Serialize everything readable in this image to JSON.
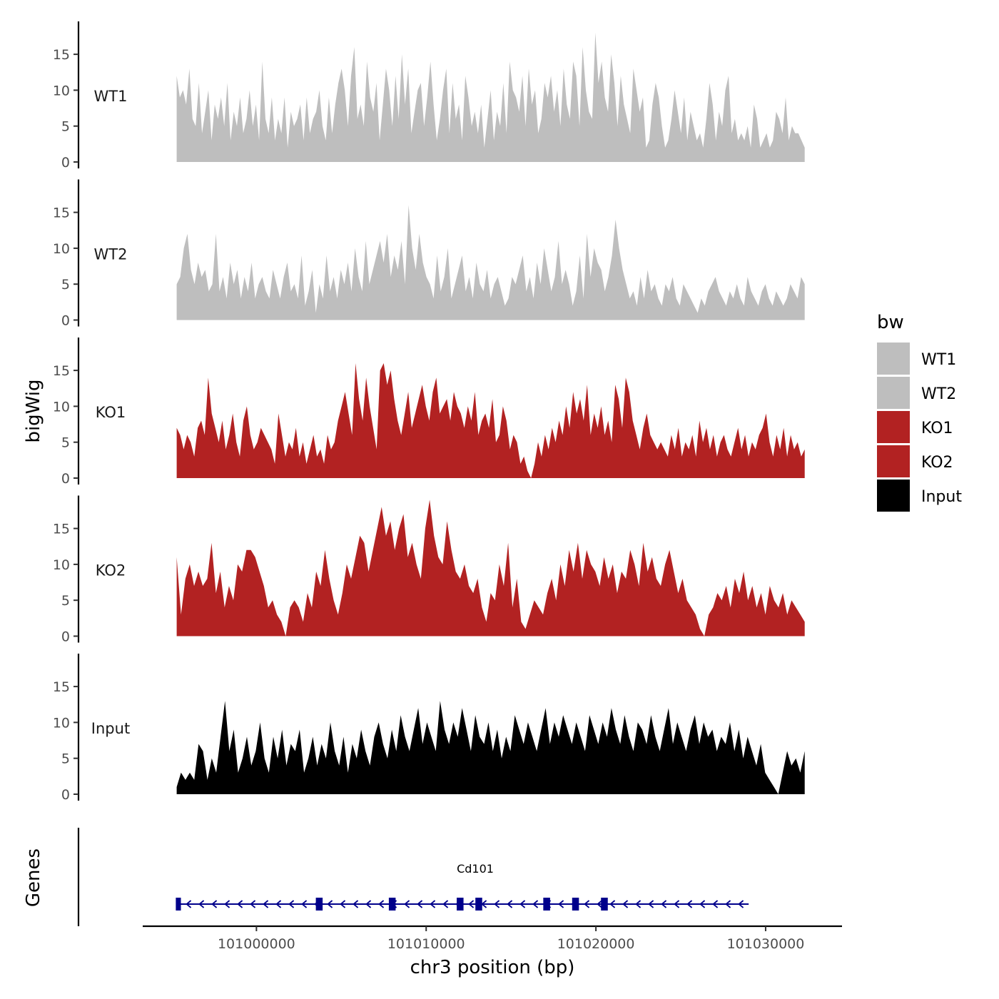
{
  "chart_data": {
    "type": "area",
    "title": "",
    "ylabel": "bigWig",
    "xlabel": "chr3 position (bp)",
    "genes_label": "Genes",
    "ylim": [
      0,
      19
    ],
    "yticks": [
      0,
      5,
      10,
      15
    ],
    "xlim": [
      100993300,
      101034500
    ],
    "xticks": [
      101000000,
      101010000,
      101020000,
      101030000
    ],
    "x_start": 100995300,
    "x_end": 101032300,
    "legend": {
      "title": "bw",
      "position": "right",
      "entries": [
        {
          "label": "WT1",
          "color": "#bebebe"
        },
        {
          "label": "WT2",
          "color": "#bebebe"
        },
        {
          "label": "KO1",
          "color": "#b22222"
        },
        {
          "label": "KO2",
          "color": "#b22222"
        },
        {
          "label": "Input",
          "color": "#000000"
        }
      ]
    },
    "series": [
      {
        "name": "WT1",
        "color": "#bebebe",
        "values": [
          12,
          9,
          10,
          8,
          13,
          6,
          5,
          11,
          4,
          7,
          10,
          3,
          8,
          6,
          9,
          5,
          11,
          3,
          7,
          5,
          9,
          4,
          6,
          10,
          5,
          8,
          3,
          14,
          6,
          4,
          9,
          3,
          6,
          4,
          9,
          2,
          7,
          5,
          6,
          8,
          3,
          9,
          4,
          6,
          7,
          10,
          5,
          3,
          9,
          4,
          8,
          11,
          13,
          10,
          5,
          12,
          16,
          6,
          8,
          5,
          14,
          9,
          7,
          11,
          3,
          8,
          13,
          10,
          5,
          12,
          6,
          15,
          8,
          13,
          4,
          7,
          10,
          11,
          5,
          9,
          14,
          8,
          3,
          6,
          10,
          13,
          4,
          11,
          6,
          8,
          3,
          12,
          9,
          5,
          7,
          4,
          8,
          2,
          6,
          10,
          3,
          7,
          5,
          11,
          4,
          14,
          10,
          9,
          7,
          12,
          5,
          13,
          8,
          10,
          4,
          6,
          11,
          9,
          12,
          7,
          10,
          5,
          13,
          8,
          6,
          14,
          12,
          5,
          16,
          10,
          7,
          6,
          18,
          11,
          14,
          9,
          7,
          15,
          11,
          5,
          12,
          8,
          6,
          4,
          13,
          10,
          7,
          9,
          2,
          3,
          8,
          11,
          9,
          5,
          2,
          3,
          6,
          10,
          7,
          4,
          9,
          3,
          7,
          5,
          3,
          4,
          2,
          6,
          11,
          8,
          3,
          7,
          5,
          10,
          12,
          4,
          6,
          3,
          4,
          3,
          5,
          2,
          8,
          6,
          2,
          3,
          4,
          2,
          3,
          7,
          6,
          4,
          9,
          3,
          5,
          4,
          4,
          3,
          2
        ]
      },
      {
        "name": "WT2",
        "color": "#bebebe",
        "values": [
          5,
          6,
          10,
          12,
          7,
          5,
          8,
          6,
          7,
          4,
          5,
          12,
          4,
          6,
          3,
          8,
          5,
          7,
          3,
          6,
          4,
          8,
          3,
          5,
          6,
          4,
          3,
          7,
          5,
          3,
          6,
          8,
          4,
          5,
          3,
          9,
          2,
          4,
          7,
          1,
          5,
          3,
          9,
          4,
          6,
          3,
          7,
          5,
          8,
          4,
          10,
          6,
          4,
          11,
          5,
          7,
          9,
          11,
          8,
          12,
          6,
          9,
          7,
          11,
          5,
          16,
          10,
          7,
          12,
          8,
          6,
          5,
          3,
          9,
          4,
          6,
          10,
          3,
          5,
          7,
          9,
          4,
          6,
          3,
          8,
          5,
          4,
          7,
          3,
          5,
          6,
          4,
          2,
          3,
          6,
          5,
          7,
          9,
          4,
          6,
          3,
          8,
          5,
          10,
          7,
          4,
          6,
          11,
          5,
          7,
          5,
          2,
          4,
          9,
          3,
          12,
          6,
          10,
          8,
          7,
          4,
          6,
          9,
          14,
          10,
          7,
          5,
          3,
          4,
          2,
          6,
          3,
          7,
          4,
          5,
          3,
          2,
          5,
          4,
          6,
          3,
          2,
          5,
          4,
          3,
          2,
          1,
          3,
          2,
          4,
          5,
          6,
          4,
          3,
          2,
          4,
          3,
          5,
          3,
          2,
          6,
          4,
          3,
          2,
          4,
          5,
          3,
          2,
          4,
          3,
          2,
          3,
          5,
          4,
          3,
          6,
          5
        ]
      },
      {
        "name": "KO1",
        "color": "#b22222",
        "values": [
          7,
          6,
          4,
          6,
          5,
          3,
          7,
          8,
          6,
          14,
          9,
          7,
          5,
          8,
          4,
          6,
          9,
          5,
          3,
          8,
          10,
          6,
          4,
          5,
          7,
          6,
          5,
          4,
          2,
          9,
          6,
          3,
          5,
          4,
          7,
          3,
          5,
          2,
          4,
          6,
          3,
          4,
          2,
          6,
          4,
          5,
          8,
          10,
          12,
          9,
          6,
          16,
          11,
          8,
          14,
          10,
          7,
          4,
          15,
          16,
          13,
          15,
          11,
          8,
          6,
          9,
          12,
          7,
          9,
          11,
          13,
          10,
          8,
          12,
          14,
          9,
          10,
          11,
          8,
          12,
          10,
          9,
          7,
          10,
          8,
          12,
          6,
          8,
          9,
          7,
          11,
          5,
          6,
          10,
          8,
          4,
          6,
          5,
          2,
          3,
          1,
          0,
          2,
          5,
          3,
          6,
          4,
          7,
          5,
          8,
          6,
          10,
          7,
          12,
          9,
          11,
          8,
          13,
          6,
          9,
          7,
          10,
          6,
          8,
          5,
          13,
          11,
          7,
          14,
          12,
          8,
          6,
          4,
          7,
          9,
          6,
          5,
          4,
          5,
          4,
          3,
          6,
          4,
          7,
          3,
          5,
          4,
          6,
          3,
          8,
          5,
          7,
          4,
          6,
          3,
          5,
          6,
          4,
          3,
          5,
          7,
          4,
          6,
          3,
          5,
          4,
          6,
          7,
          9,
          5,
          3,
          6,
          4,
          7,
          3,
          6,
          4,
          5,
          3,
          4
        ]
      },
      {
        "name": "KO2",
        "color": "#b22222",
        "values": [
          11,
          3,
          8,
          10,
          7,
          9,
          7,
          8,
          13,
          6,
          9,
          4,
          7,
          5,
          10,
          9,
          12,
          12,
          11,
          9,
          7,
          4,
          5,
          3,
          2,
          0,
          4,
          5,
          4,
          2,
          6,
          4,
          9,
          7,
          12,
          8,
          5,
          3,
          6,
          10,
          8,
          11,
          14,
          13,
          9,
          12,
          15,
          18,
          14,
          16,
          12,
          15,
          17,
          11,
          13,
          10,
          8,
          15,
          19,
          14,
          11,
          10,
          16,
          12,
          9,
          8,
          10,
          7,
          6,
          8,
          4,
          2,
          6,
          5,
          10,
          7,
          13,
          4,
          8,
          2,
          1,
          3,
          5,
          4,
          3,
          6,
          8,
          5,
          10,
          7,
          12,
          9,
          13,
          8,
          12,
          10,
          9,
          7,
          11,
          8,
          10,
          6,
          9,
          8,
          12,
          10,
          7,
          13,
          9,
          11,
          8,
          7,
          10,
          12,
          9,
          6,
          8,
          5,
          4,
          3,
          1,
          0,
          3,
          4,
          6,
          5,
          7,
          4,
          8,
          6,
          9,
          5,
          7,
          4,
          6,
          3,
          7,
          5,
          4,
          6,
          3,
          5,
          4,
          3,
          2
        ]
      },
      {
        "name": "Input",
        "color": "#000000",
        "values": [
          1,
          3,
          2,
          3,
          2,
          7,
          6,
          2,
          5,
          3,
          8,
          13,
          6,
          9,
          3,
          5,
          8,
          4,
          6,
          10,
          5,
          3,
          8,
          5,
          9,
          4,
          7,
          6,
          9,
          3,
          5,
          8,
          4,
          7,
          5,
          10,
          6,
          4,
          8,
          3,
          7,
          5,
          9,
          6,
          4,
          8,
          10,
          7,
          5,
          9,
          6,
          11,
          8,
          6,
          9,
          12,
          7,
          10,
          8,
          6,
          13,
          9,
          7,
          10,
          8,
          12,
          9,
          6,
          11,
          8,
          7,
          10,
          6,
          9,
          5,
          8,
          6,
          11,
          9,
          7,
          10,
          8,
          6,
          9,
          12,
          7,
          10,
          8,
          11,
          9,
          7,
          10,
          8,
          6,
          11,
          9,
          7,
          10,
          8,
          12,
          9,
          7,
          11,
          8,
          6,
          10,
          9,
          7,
          11,
          8,
          6,
          9,
          12,
          7,
          10,
          8,
          6,
          9,
          11,
          7,
          10,
          8,
          9,
          6,
          8,
          7,
          10,
          6,
          9,
          5,
          8,
          6,
          4,
          7,
          3,
          2,
          1,
          0,
          3,
          6,
          4,
          5,
          3,
          6
        ]
      }
    ],
    "genes": [
      {
        "name": "Cd101",
        "strand": "-",
        "start": 100995300,
        "end": 101029000,
        "color": "#00008b",
        "exons": [
          [
            100995250,
            100995550
          ],
          [
            101003500,
            101003900
          ],
          [
            101007800,
            101008200
          ],
          [
            101011800,
            101012200
          ],
          [
            101012900,
            101013300
          ],
          [
            101016900,
            101017300
          ],
          [
            101018600,
            101019000
          ],
          [
            101020300,
            101020700
          ]
        ]
      }
    ]
  }
}
